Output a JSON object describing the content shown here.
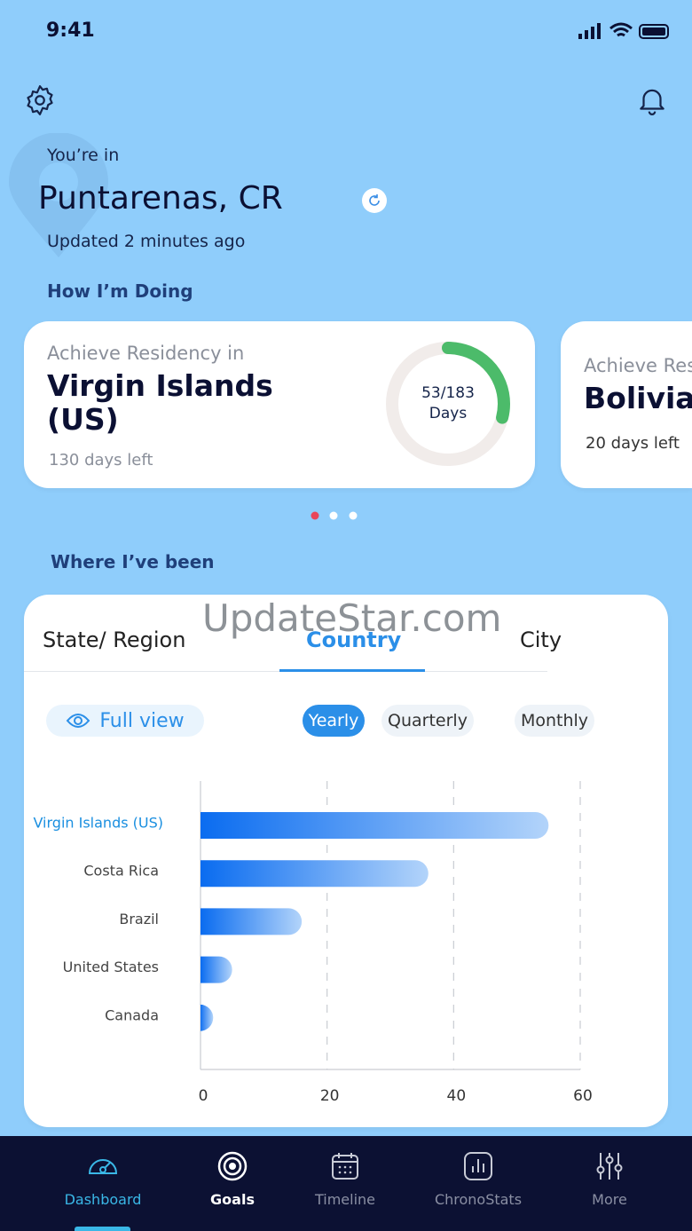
{
  "status_bar": {
    "time": "9:41"
  },
  "location": {
    "label": "You’re in",
    "place": "Puntarenas, CR",
    "updated": "Updated 2 minutes ago"
  },
  "goals_section": {
    "title": "How I’m Doing",
    "cards": [
      {
        "caption": "Achieve Residency in",
        "country": "Virgin Islands (US)",
        "days_left": "130 days left",
        "progress_text": "53/183",
        "progress_unit": "Days",
        "days_done": 53,
        "days_total": 183
      },
      {
        "caption": "Achieve Res",
        "country": "Bolivia",
        "days_left": "20 days left"
      }
    ]
  },
  "where_section": {
    "title": "Where I’ve been",
    "tabs": [
      "State/ Region",
      "Country",
      "City"
    ],
    "full_view": "Full view",
    "periods": [
      "Yearly",
      "Quarterly",
      "Monthly"
    ]
  },
  "watermark": "UpdateStar.com",
  "chart_data": {
    "type": "bar",
    "orientation": "horizontal",
    "categories": [
      "Virgin Islands (US)",
      "Costa Rica",
      "Brazil",
      "United States",
      "Canada"
    ],
    "values": [
      55,
      36,
      16,
      5,
      2
    ],
    "xlim": [
      0,
      60
    ],
    "xticks": [
      0,
      20,
      40,
      60
    ],
    "grid": true,
    "color_start": "#0a6cf0",
    "color_end": "#b3d4fa",
    "highlight_color": "#1a8fe0"
  },
  "nav": {
    "items": [
      "Dashboard",
      "Goals",
      "Timeline",
      "ChronoStats",
      "More"
    ]
  }
}
